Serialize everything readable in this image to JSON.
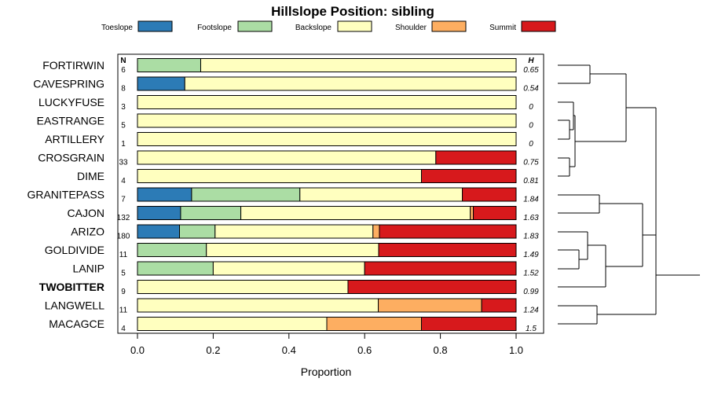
{
  "chart_data": {
    "type": "bar",
    "orientation": "horizontal",
    "stacked": true,
    "title": "Hillslope Position: sibling",
    "xlabel": "Proportion",
    "xlim": [
      0,
      1
    ],
    "xticks": [
      "0.0",
      "0.2",
      "0.4",
      "0.6",
      "0.8",
      "1.0"
    ],
    "n_header": "N",
    "h_header": "H",
    "legend_position": "top",
    "series": [
      {
        "name": "Toeslope",
        "color": "#2c7bb6"
      },
      {
        "name": "Footslope",
        "color": "#abdda4"
      },
      {
        "name": "Backslope",
        "color": "#ffffbf"
      },
      {
        "name": "Shoulder",
        "color": "#fdae61"
      },
      {
        "name": "Summit",
        "color": "#d7191c"
      }
    ],
    "rows": [
      {
        "label": "FORTIRWIN",
        "n": "6",
        "h": "0.65",
        "values": [
          0,
          0.167,
          0.833,
          0,
          0
        ]
      },
      {
        "label": "CAVESPRING",
        "n": "8",
        "h": "0.54",
        "values": [
          0.125,
          0,
          0.875,
          0,
          0
        ]
      },
      {
        "label": "LUCKYFUSE",
        "n": "3",
        "h": "0",
        "values": [
          0,
          0,
          1,
          0,
          0
        ]
      },
      {
        "label": "EASTRANGE",
        "n": "5",
        "h": "0",
        "values": [
          0,
          0,
          1,
          0,
          0
        ]
      },
      {
        "label": "ARTILLERY",
        "n": "1",
        "h": "0",
        "values": [
          0,
          0,
          1,
          0,
          0
        ]
      },
      {
        "label": "CROSGRAIN",
        "n": "33",
        "h": "0.75",
        "values": [
          0,
          0,
          0.788,
          0,
          0.212
        ]
      },
      {
        "label": "DIME",
        "n": "4",
        "h": "0.81",
        "values": [
          0,
          0,
          0.75,
          0,
          0.25
        ]
      },
      {
        "label": "GRANITEPASS",
        "n": "7",
        "h": "1.84",
        "values": [
          0.143,
          0.286,
          0.429,
          0,
          0.142
        ]
      },
      {
        "label": "CAJON",
        "n": "132",
        "h": "1.63",
        "values": [
          0.114,
          0.159,
          0.606,
          0.008,
          0.113
        ]
      },
      {
        "label": "ARIZO",
        "n": "180",
        "h": "1.83",
        "values": [
          0.111,
          0.094,
          0.417,
          0.017,
          0.361
        ]
      },
      {
        "label": "GOLDIVIDE",
        "n": "11",
        "h": "1.49",
        "values": [
          0,
          0.182,
          0.455,
          0,
          0.363
        ]
      },
      {
        "label": "LANIP",
        "n": "5",
        "h": "1.52",
        "values": [
          0,
          0.2,
          0.4,
          0,
          0.4
        ]
      },
      {
        "label": "TWOBITTER",
        "n": "9",
        "h": "0.99",
        "values": [
          0,
          0,
          0.556,
          0,
          0.444
        ],
        "bold": true
      },
      {
        "label": "LANGWELL",
        "n": "11",
        "h": "1.24",
        "values": [
          0,
          0,
          0.636,
          0.273,
          0.091
        ]
      },
      {
        "label": "MACAGCE",
        "n": "4",
        "h": "1.5",
        "values": [
          0,
          0,
          0.5,
          0.25,
          0.25
        ]
      }
    ]
  }
}
